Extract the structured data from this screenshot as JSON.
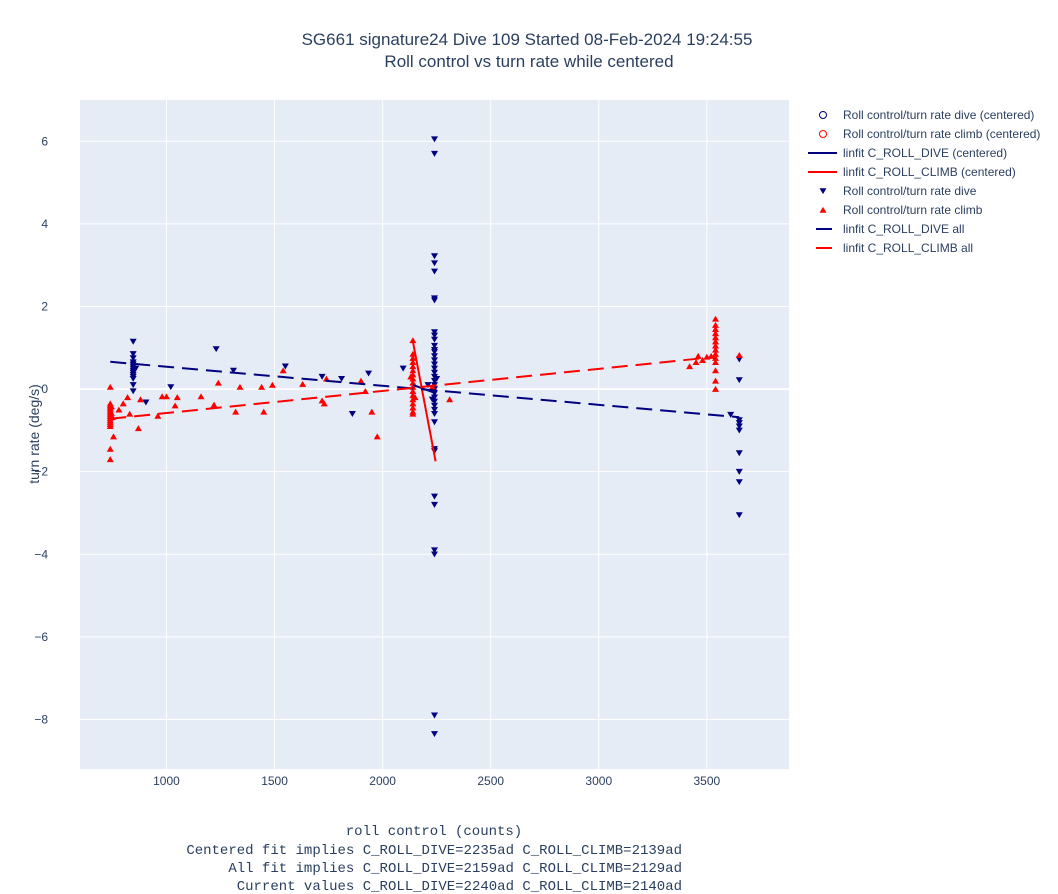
{
  "chart_data": {
    "type": "scatter",
    "title": "SG661 signature24 Dive 109 Started 08-Feb-2024 19:24:55",
    "subtitle": "Roll control vs turn rate while centered",
    "xlabel": "roll control (counts)",
    "ylabel": "turn rate (deg/s)",
    "footer_lines": [
      "Centered fit implies C_ROLL_DIVE=2235ad C_ROLL_CLIMB=2139ad",
      "All fit implies C_ROLL_DIVE=2159ad C_ROLL_CLIMB=2129ad",
      "Current values C_ROLL_DIVE=2240ad C_ROLL_CLIMB=2140ad"
    ],
    "xlim": [
      600,
      3880
    ],
    "ylim": [
      -9.2,
      7.0
    ],
    "xticks": [
      1000,
      1500,
      2000,
      2500,
      3000,
      3500
    ],
    "yticks": [
      6,
      4,
      2,
      0,
      -2,
      -4,
      -6,
      -8
    ],
    "ytick_labels": [
      "6",
      "4",
      "2",
      "0",
      "−2",
      "−4",
      "−6",
      "−8"
    ],
    "grid": true,
    "legend_position": "right",
    "colors": {
      "dive": "#000080",
      "climb": "#ff0000",
      "plot_bg": "#e5ecf6",
      "grid": "#ffffff"
    },
    "series": [
      {
        "name": "Roll control/turn rate dive (centered)",
        "kind": "marker-open-circle",
        "color": "#000080",
        "points": []
      },
      {
        "name": "Roll control/turn rate climb (centered)",
        "kind": "marker-open-circle",
        "color": "#ff0000",
        "points": []
      },
      {
        "name": "linfit C_ROLL_DIVE (centered)",
        "kind": "solid-line",
        "color": "#000080",
        "points": [
          [
            2140,
            0.1
          ],
          [
            2245,
            -0.1
          ]
        ]
      },
      {
        "name": "linfit C_ROLL_CLIMB (centered)",
        "kind": "solid-line",
        "color": "#ff0000",
        "points": [
          [
            2140,
            1.15
          ],
          [
            2245,
            -1.75
          ]
        ]
      },
      {
        "name": "Roll control/turn rate dive",
        "kind": "marker-triangle-down",
        "color": "#000080",
        "points": [
          [
            846,
            1.15
          ],
          [
            846,
            0.85
          ],
          [
            846,
            0.75
          ],
          [
            846,
            0.65
          ],
          [
            846,
            0.55
          ],
          [
            846,
            0.45
          ],
          [
            846,
            0.35
          ],
          [
            846,
            0.25
          ],
          [
            846,
            0.1
          ],
          [
            846,
            -0.05
          ],
          [
            846,
            0.6
          ],
          [
            846,
            0.5
          ],
          [
            846,
            0.4
          ],
          [
            846,
            0.3
          ],
          [
            858,
            0.5
          ],
          [
            905,
            -0.32
          ],
          [
            1020,
            0.05
          ],
          [
            1230,
            0.97
          ],
          [
            1310,
            0.45
          ],
          [
            1550,
            0.55
          ],
          [
            1720,
            0.3
          ],
          [
            1810,
            0.25
          ],
          [
            1860,
            -0.6
          ],
          [
            1935,
            0.38
          ],
          [
            2095,
            0.5
          ],
          [
            2240,
            6.05
          ],
          [
            2240,
            5.7
          ],
          [
            2240,
            3.22
          ],
          [
            2240,
            3.05
          ],
          [
            2240,
            2.85
          ],
          [
            2240,
            2.2
          ],
          [
            2240,
            2.15
          ],
          [
            2240,
            1.38
          ],
          [
            2240,
            1.3
          ],
          [
            2240,
            1.2
          ],
          [
            2240,
            1.05
          ],
          [
            2240,
            0.95
          ],
          [
            2240,
            0.9
          ],
          [
            2240,
            0.8
          ],
          [
            2240,
            0.7
          ],
          [
            2240,
            0.6
          ],
          [
            2240,
            0.5
          ],
          [
            2240,
            0.4
          ],
          [
            2240,
            0.3
          ],
          [
            2240,
            0.2
          ],
          [
            2240,
            0.1
          ],
          [
            2240,
            0.0
          ],
          [
            2240,
            -0.1
          ],
          [
            2240,
            -0.2
          ],
          [
            2240,
            -0.3
          ],
          [
            2240,
            -0.4
          ],
          [
            2240,
            -0.5
          ],
          [
            2240,
            -0.6
          ],
          [
            2240,
            -0.8
          ],
          [
            2240,
            -1.45
          ],
          [
            2240,
            -1.5
          ],
          [
            2240,
            -2.6
          ],
          [
            2240,
            -2.8
          ],
          [
            2240,
            -3.9
          ],
          [
            2240,
            -4.0
          ],
          [
            2240,
            -7.9
          ],
          [
            2240,
            -8.35
          ],
          [
            2210,
            0.1
          ],
          [
            2230,
            -0.25
          ],
          [
            2250,
            0.25
          ],
          [
            3610,
            -0.62
          ],
          [
            3650,
            0.72
          ],
          [
            3650,
            0.22
          ],
          [
            3650,
            -0.75
          ],
          [
            3650,
            -0.82
          ],
          [
            3650,
            -0.9
          ],
          [
            3650,
            -1.0
          ],
          [
            3650,
            -1.55
          ],
          [
            3650,
            -2.0
          ],
          [
            3650,
            -2.25
          ],
          [
            3650,
            -3.05
          ]
        ]
      },
      {
        "name": "Roll control/turn rate climb",
        "kind": "marker-triangle-up",
        "color": "#ff0000",
        "points": [
          [
            740,
            0.05
          ],
          [
            740,
            -0.35
          ],
          [
            740,
            -0.4
          ],
          [
            740,
            -0.45
          ],
          [
            740,
            -0.5
          ],
          [
            740,
            -0.55
          ],
          [
            740,
            -0.6
          ],
          [
            740,
            -0.65
          ],
          [
            740,
            -0.7
          ],
          [
            740,
            -0.75
          ],
          [
            740,
            -0.8
          ],
          [
            740,
            -0.85
          ],
          [
            740,
            -0.9
          ],
          [
            740,
            -1.45
          ],
          [
            740,
            -1.7
          ],
          [
            745,
            -0.42
          ],
          [
            745,
            -0.58
          ],
          [
            750,
            -0.68
          ],
          [
            755,
            -1.15
          ],
          [
            780,
            -0.5
          ],
          [
            800,
            -0.35
          ],
          [
            820,
            -0.2
          ],
          [
            830,
            -0.6
          ],
          [
            870,
            -0.95
          ],
          [
            880,
            -0.25
          ],
          [
            960,
            -0.65
          ],
          [
            980,
            -0.18
          ],
          [
            1000,
            -0.18
          ],
          [
            1040,
            -0.4
          ],
          [
            1050,
            -0.2
          ],
          [
            1160,
            -0.18
          ],
          [
            1220,
            -0.38
          ],
          [
            1240,
            0.15
          ],
          [
            1320,
            -0.55
          ],
          [
            1340,
            0.05
          ],
          [
            1440,
            0.05
          ],
          [
            1450,
            -0.55
          ],
          [
            1490,
            0.1
          ],
          [
            1540,
            0.45
          ],
          [
            1630,
            0.12
          ],
          [
            1720,
            -0.28
          ],
          [
            1730,
            -0.35
          ],
          [
            1740,
            0.25
          ],
          [
            1900,
            0.2
          ],
          [
            1920,
            -0.05
          ],
          [
            1950,
            -0.55
          ],
          [
            1975,
            -1.15
          ],
          [
            2140,
            1.18
          ],
          [
            2140,
            0.85
          ],
          [
            2140,
            0.75
          ],
          [
            2140,
            0.65
          ],
          [
            2140,
            0.55
          ],
          [
            2140,
            0.45
          ],
          [
            2140,
            0.35
          ],
          [
            2140,
            0.25
          ],
          [
            2140,
            0.15
          ],
          [
            2140,
            0.05
          ],
          [
            2140,
            -0.05
          ],
          [
            2140,
            -0.15
          ],
          [
            2140,
            -0.25
          ],
          [
            2140,
            -0.35
          ],
          [
            2140,
            -0.45
          ],
          [
            2140,
            -0.55
          ],
          [
            2140,
            -0.6
          ],
          [
            2130,
            0.3
          ],
          [
            2150,
            -0.2
          ],
          [
            2230,
            0.05
          ],
          [
            2310,
            -0.25
          ],
          [
            3420,
            0.55
          ],
          [
            3450,
            0.65
          ],
          [
            3460,
            0.8
          ],
          [
            3480,
            0.7
          ],
          [
            3500,
            0.78
          ],
          [
            3520,
            0.8
          ],
          [
            3540,
            1.7
          ],
          [
            3540,
            1.55
          ],
          [
            3540,
            1.45
          ],
          [
            3540,
            1.35
          ],
          [
            3540,
            1.25
          ],
          [
            3540,
            1.15
          ],
          [
            3540,
            1.05
          ],
          [
            3540,
            0.95
          ],
          [
            3540,
            0.85
          ],
          [
            3540,
            0.75
          ],
          [
            3540,
            0.65
          ],
          [
            3540,
            0.45
          ],
          [
            3540,
            0.2
          ],
          [
            3540,
            0.0
          ],
          [
            3650,
            0.82
          ]
        ]
      },
      {
        "name": "linfit C_ROLL_DIVE all",
        "kind": "dashed-line",
        "color": "#000080",
        "points": [
          [
            740,
            0.66
          ],
          [
            3650,
            -0.68
          ]
        ]
      },
      {
        "name": "linfit C_ROLL_CLIMB all",
        "kind": "dashed-line",
        "color": "#ff0000",
        "points": [
          [
            740,
            -0.72
          ],
          [
            3540,
            0.78
          ]
        ]
      }
    ]
  }
}
